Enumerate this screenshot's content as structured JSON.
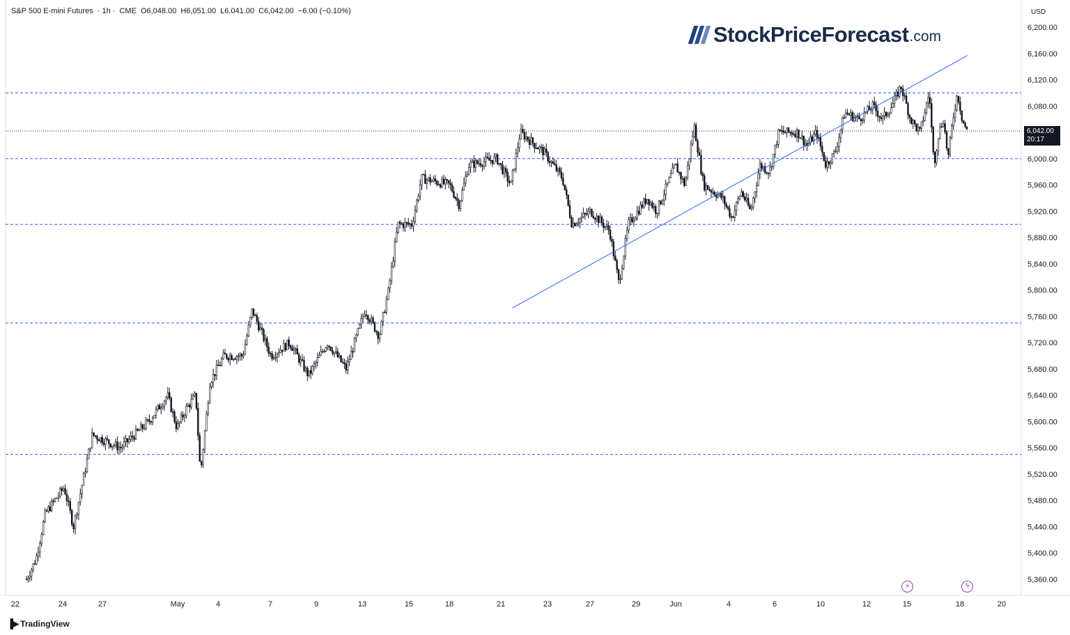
{
  "header": {
    "symbol": "S&P 500 E-mini Futures",
    "interval": "· 1h ·",
    "exchange": "CME",
    "open": "O6,048.00",
    "high": "H6,051.00",
    "low": "L6,041.00",
    "close": "C6,042.00",
    "change": "−6.00 (−0.10%)"
  },
  "currency": "USD",
  "logo": {
    "brand": "StockPriceForecast",
    "tld": ".com"
  },
  "footer": {
    "brand": "TradingView",
    "icon": "tradingview-icon"
  },
  "last_price": {
    "value": "6,042.00",
    "countdown": "20:17"
  },
  "colors": {
    "candle": "#131722",
    "trendline": "#2962ff",
    "hline": "#2962ff",
    "price_line": "#131722",
    "marker": "#8e44ad"
  },
  "chart_data": {
    "type": "candlestick",
    "title": "S&P 500 E-mini Futures · 1h · CME",
    "xlabel": "",
    "ylabel": "",
    "ylim": [
      5320,
      6220
    ],
    "y_ticks": [
      "6,200.00",
      "6,160.00",
      "6,120.00",
      "6,080.00",
      "6,040.00",
      "6,000.00",
      "5,960.00",
      "5,920.00",
      "5,880.00",
      "5,840.00",
      "5,800.00",
      "5,760.00",
      "5,720.00",
      "5,680.00",
      "5,640.00",
      "5,600.00",
      "5,560.00",
      "5,520.00",
      "5,480.00",
      "5,440.00",
      "5,400.00",
      "5,360.00"
    ],
    "x_ticks": [
      "22",
      "24",
      "27",
      "May",
      "4",
      "7",
      "9",
      "13",
      "15",
      "18",
      "21",
      "23",
      "27",
      "29",
      "Jun",
      "4",
      "6",
      "10",
      "12",
      "15",
      "18",
      "20"
    ],
    "horizontal_levels": [
      6100,
      6000,
      5900,
      5750,
      5550
    ],
    "last_price": 6042,
    "trendline": [
      [
        0.0,
        5773
      ],
      [
        1.0,
        6157
      ]
    ],
    "path_waypoints": [
      [
        0,
        5360
      ],
      [
        0.01,
        5390
      ],
      [
        0.02,
        5460
      ],
      [
        0.04,
        5500
      ],
      [
        0.05,
        5440
      ],
      [
        0.07,
        5580
      ],
      [
        0.1,
        5560
      ],
      [
        0.13,
        5600
      ],
      [
        0.15,
        5640
      ],
      [
        0.16,
        5590
      ],
      [
        0.17,
        5620
      ],
      [
        0.18,
        5640
      ],
      [
        0.185,
        5520
      ],
      [
        0.195,
        5660
      ],
      [
        0.21,
        5700
      ],
      [
        0.23,
        5700
      ],
      [
        0.24,
        5770
      ],
      [
        0.26,
        5700
      ],
      [
        0.28,
        5720
      ],
      [
        0.3,
        5670
      ],
      [
        0.32,
        5720
      ],
      [
        0.34,
        5680
      ],
      [
        0.36,
        5770
      ],
      [
        0.375,
        5730
      ],
      [
        0.385,
        5800
      ],
      [
        0.395,
        5900
      ],
      [
        0.41,
        5900
      ],
      [
        0.42,
        5970
      ],
      [
        0.45,
        5960
      ],
      [
        0.46,
        5930
      ],
      [
        0.47,
        5990
      ],
      [
        0.5,
        6000
      ],
      [
        0.515,
        5960
      ],
      [
        0.525,
        6040
      ],
      [
        0.55,
        6010
      ],
      [
        0.57,
        5970
      ],
      [
        0.58,
        5900
      ],
      [
        0.6,
        5920
      ],
      [
        0.62,
        5890
      ],
      [
        0.63,
        5810
      ],
      [
        0.64,
        5900
      ],
      [
        0.66,
        5940
      ],
      [
        0.67,
        5920
      ],
      [
        0.69,
        5990
      ],
      [
        0.7,
        5960
      ],
      [
        0.71,
        6050
      ],
      [
        0.72,
        5960
      ],
      [
        0.74,
        5940
      ],
      [
        0.75,
        5910
      ],
      [
        0.76,
        5950
      ],
      [
        0.77,
        5920
      ],
      [
        0.78,
        5990
      ],
      [
        0.79,
        5980
      ],
      [
        0.8,
        6040
      ],
      [
        0.82,
        6040
      ],
      [
        0.83,
        6020
      ],
      [
        0.84,
        6040
      ],
      [
        0.85,
        5990
      ],
      [
        0.86,
        6010
      ],
      [
        0.87,
        6070
      ],
      [
        0.885,
        6060
      ],
      [
        0.9,
        6080
      ],
      [
        0.91,
        6060
      ],
      [
        0.92,
        6080
      ],
      [
        0.93,
        6110
      ],
      [
        0.94,
        6060
      ],
      [
        0.95,
        6040
      ],
      [
        0.96,
        6100
      ],
      [
        0.965,
        5990
      ],
      [
        0.97,
        6040
      ],
      [
        0.975,
        6060
      ],
      [
        0.98,
        6000
      ],
      [
        0.985,
        6060
      ],
      [
        0.99,
        6100
      ],
      [
        0.995,
        6060
      ],
      [
        1.0,
        6042
      ]
    ]
  }
}
